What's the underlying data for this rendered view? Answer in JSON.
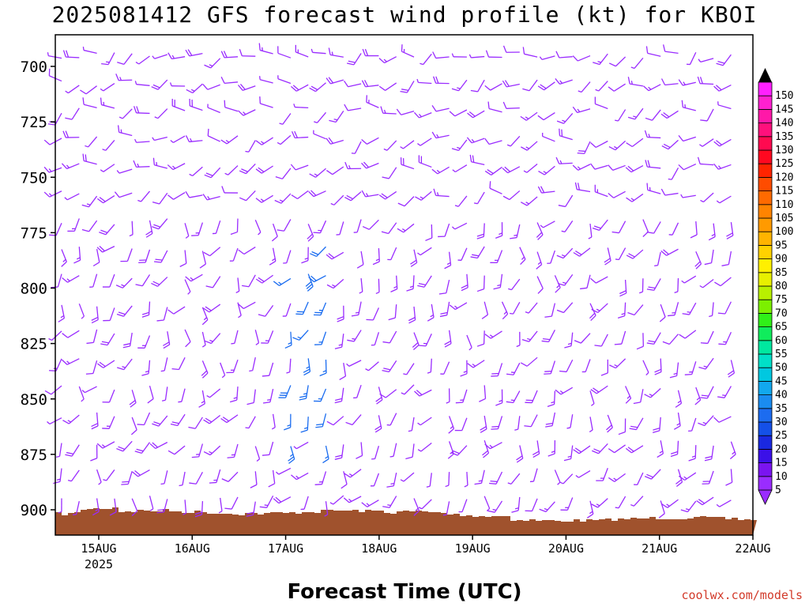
{
  "chart_data": {
    "type": "wind_barb_profile",
    "title": "2025081412 GFS forecast wind profile (kt) for KBOI",
    "xlabel": "Forecast Time (UTC)",
    "ylabel": "",
    "credit": "coolwx.com/models",
    "y_axis": {
      "reversed": true,
      "ticks": [
        700,
        725,
        750,
        775,
        800,
        825,
        850,
        875,
        900
      ]
    },
    "x_axis": {
      "ticks": [
        {
          "label": "15AUG",
          "sublabel": "2025",
          "day": 15
        },
        {
          "label": "16AUG",
          "sublabel": "",
          "day": 16
        },
        {
          "label": "17AUG",
          "sublabel": "",
          "day": 17
        },
        {
          "label": "18AUG",
          "sublabel": "",
          "day": 18
        },
        {
          "label": "19AUG",
          "sublabel": "",
          "day": 19
        },
        {
          "label": "20AUG",
          "sublabel": "",
          "day": 20
        },
        {
          "label": "21AUG",
          "sublabel": "",
          "day": 21
        },
        {
          "label": "22AUG",
          "sublabel": "",
          "day": 22
        }
      ]
    },
    "colorbar": {
      "values": [
        5,
        10,
        15,
        20,
        25,
        30,
        35,
        40,
        45,
        50,
        55,
        60,
        65,
        70,
        75,
        80,
        85,
        90,
        95,
        100,
        105,
        110,
        115,
        120,
        125,
        130,
        135,
        140,
        145,
        150
      ],
      "colors": [
        "#9a2cff",
        "#7a14f0",
        "#3b10e8",
        "#1a28e0",
        "#1450e8",
        "#1c6cf0",
        "#1a8cf0",
        "#12a8ee",
        "#00c8e0",
        "#00e0c8",
        "#00e8a0",
        "#10ec5c",
        "#30f018",
        "#7cf000",
        "#b8f000",
        "#e8f000",
        "#fff000",
        "#ffd200",
        "#ffb400",
        "#ff9a00",
        "#ff8400",
        "#ff6a00",
        "#ff4c00",
        "#ff2400",
        "#ff0820",
        "#ff0a50",
        "#ff107c",
        "#ff18a8",
        "#ff20d0",
        "#ff20ff"
      ]
    },
    "terrain_color": "#a0522d",
    "barb_color": "#9a2cff",
    "barb_color_strong": "#1a6cf0"
  }
}
